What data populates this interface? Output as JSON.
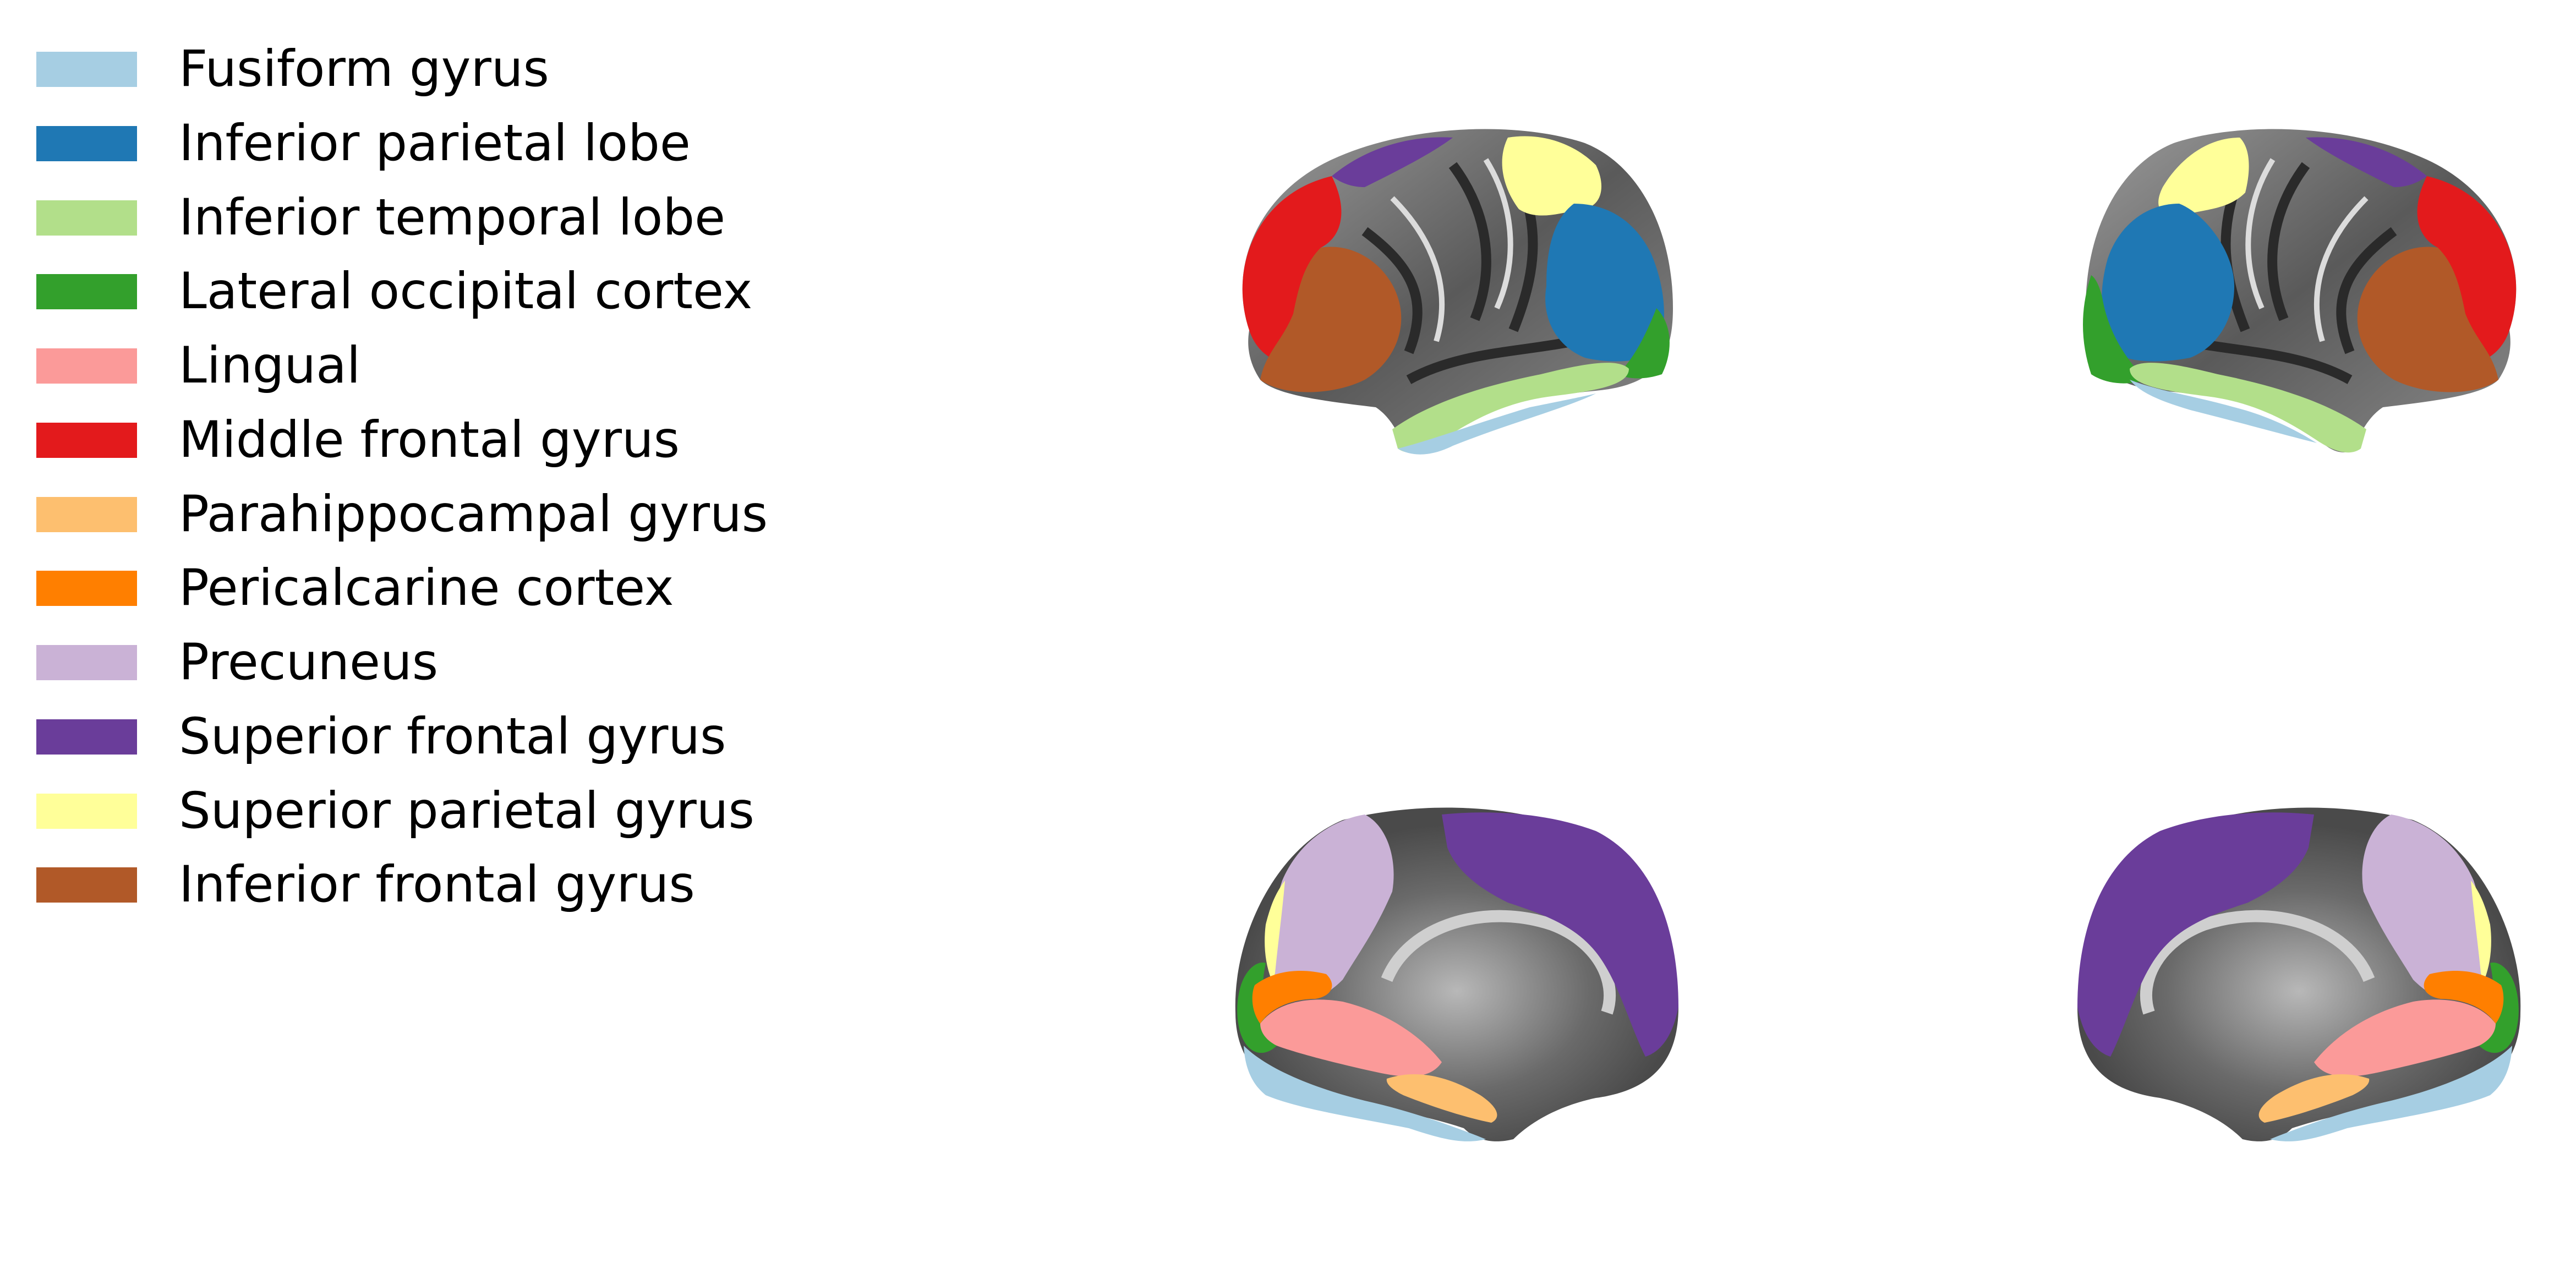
{
  "legend": {
    "items": [
      {
        "label": "Fusiform gyrus",
        "color": "#a6cee3"
      },
      {
        "label": "Inferior parietal lobe",
        "color": "#1f78b4"
      },
      {
        "label": "Inferior temporal lobe",
        "color": "#b2df8a"
      },
      {
        "label": "Lateral occipital cortex",
        "color": "#33a02c"
      },
      {
        "label": "Lingual",
        "color": "#fb9a99"
      },
      {
        "label": "Middle frontal gyrus",
        "color": "#e31a1c"
      },
      {
        "label": "Parahippocampal gyrus",
        "color": "#fdbf6f"
      },
      {
        "label": "Pericalcarine cortex",
        "color": "#ff7f00"
      },
      {
        "label": "Precuneus",
        "color": "#cab2d6"
      },
      {
        "label": "Superior frontal gyrus",
        "color": "#6a3d9a"
      },
      {
        "label": "Superior parietal gyrus",
        "color": "#ffff99"
      },
      {
        "label": "Inferior frontal gyrus",
        "color": "#b15928"
      }
    ]
  },
  "views": [
    {
      "view": "left-lateral"
    },
    {
      "view": "right-lateral"
    },
    {
      "view": "left-medial"
    },
    {
      "view": "right-medial"
    }
  ],
  "surface_colors": {
    "cortex_dark": "#3a3a3a",
    "cortex_light": "#9a9a9a"
  }
}
